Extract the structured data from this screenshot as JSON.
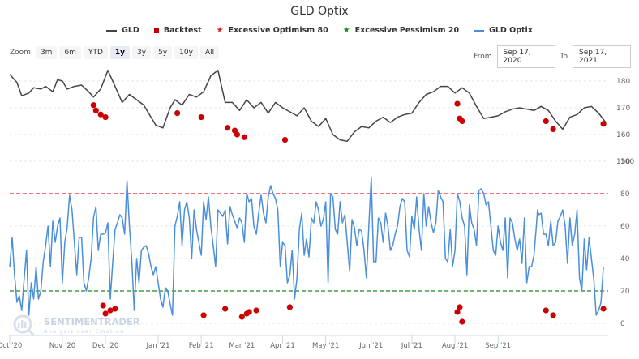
{
  "header": {
    "title": "GLD Optix"
  },
  "legend": [
    {
      "label": "GLD",
      "icon": "line",
      "color": "#444444"
    },
    {
      "label": "Backtest",
      "icon": "square",
      "color": "#c00000"
    },
    {
      "label": "Excessive Optimism 80",
      "icon": "star",
      "color": "#e02020"
    },
    {
      "label": "Excessive Pessimism 20",
      "icon": "star",
      "color": "#1a8a1a"
    },
    {
      "label": "GLD Optix",
      "icon": "line",
      "color": "#4a8fdc"
    }
  ],
  "zoom": {
    "label": "Zoom",
    "buttons": [
      "3m",
      "6m",
      "YTD",
      "1y",
      "3y",
      "5y",
      "10y",
      "All"
    ],
    "active": "1y"
  },
  "range": {
    "from_label": "From",
    "from_value": "Sep 17, 2020",
    "to_label": "To",
    "to_value": "Sep 17, 2021"
  },
  "watermark": {
    "brand": "SENTIMENTRADER",
    "tagline": "Analysis over Emotion"
  },
  "chart_data": [
    {
      "type": "line",
      "title": "GLD",
      "ylabel": "",
      "ylim": [
        150,
        185
      ],
      "yticks": [
        "150",
        "160",
        "170",
        "180"
      ],
      "x_domain": [
        0,
        250
      ],
      "series": [
        {
          "name": "GLD",
          "color": "#444444",
          "x": [
            0,
            3,
            5,
            8,
            10,
            13,
            15,
            18,
            20,
            22,
            24,
            27,
            30,
            33,
            35,
            38,
            41,
            44,
            47,
            50,
            53,
            56,
            58,
            61,
            64,
            67,
            69,
            72,
            75,
            78,
            81,
            84,
            87,
            90,
            93,
            96,
            99,
            102,
            105,
            108,
            111,
            114,
            117,
            120,
            123,
            126,
            129,
            132,
            135,
            138,
            141,
            144,
            147,
            150,
            153,
            156,
            159,
            162,
            165,
            168,
            171,
            174,
            177,
            180,
            183,
            186,
            189,
            192,
            195,
            198,
            201,
            204,
            207,
            210,
            213,
            216,
            219,
            222,
            225,
            228,
            231,
            234,
            237,
            240,
            243,
            246,
            249
          ],
          "values": [
            182.5,
            179.5,
            174.5,
            175.5,
            177.5,
            177,
            178,
            176,
            180.5,
            180,
            177,
            178,
            178.5,
            176,
            174,
            177,
            184,
            178,
            172,
            175,
            173,
            171,
            168,
            163.5,
            162.5,
            170,
            173,
            171,
            175,
            174,
            176,
            182,
            184,
            172,
            172,
            169,
            173,
            170,
            172,
            168,
            172,
            170,
            168.5,
            167,
            170,
            165,
            163,
            166,
            160,
            158,
            157.5,
            161,
            163,
            162.5,
            165,
            166.5,
            164.5,
            166.5,
            167.5,
            168,
            172,
            175,
            176,
            178,
            178,
            175.5,
            177.5,
            175.5,
            170.5,
            166,
            166.5,
            167,
            168.5,
            169.5,
            170,
            169.5,
            169,
            170.5,
            169,
            165,
            162,
            166.5,
            167.5,
            170,
            170.5,
            168,
            164.5
          ],
          "backtest_points": [
            {
              "x": 35,
              "value": 171
            },
            {
              "x": 36,
              "value": 169
            },
            {
              "x": 38,
              "value": 167.5
            },
            {
              "x": 40,
              "value": 166.5
            },
            {
              "x": 70,
              "value": 168
            },
            {
              "x": 80,
              "value": 166.5
            },
            {
              "x": 91,
              "value": 162.5
            },
            {
              "x": 94,
              "value": 161.5
            },
            {
              "x": 95,
              "value": 160
            },
            {
              "x": 98,
              "value": 159
            },
            {
              "x": 115,
              "value": 158
            },
            {
              "x": 187,
              "value": 171.5
            },
            {
              "x": 188,
              "value": 166
            },
            {
              "x": 189,
              "value": 165
            },
            {
              "x": 224,
              "value": 165
            },
            {
              "x": 227,
              "value": 162
            },
            {
              "x": 248,
              "value": 164
            }
          ]
        }
      ]
    },
    {
      "type": "line",
      "title": "GLD Optix",
      "ylabel": "",
      "ylim": [
        -5,
        100
      ],
      "yticks": [
        "0",
        "20",
        "40",
        "60",
        "80",
        "100"
      ],
      "x_domain": [
        0,
        250
      ],
      "xticks": [
        "Oct '20",
        "Nov '20",
        "Dec '20",
        "Jan '21",
        "Feb '21",
        "Mar '21",
        "Apr '21",
        "May '21",
        "Jun '21",
        "Jul '21",
        "Aug '21",
        "Sep '21"
      ],
      "xtick_positions": [
        0,
        22,
        40,
        62,
        80,
        97,
        114,
        132,
        151,
        168,
        186,
        204
      ],
      "reference_lines": [
        {
          "name": "Excessive Optimism 80",
          "value": 80,
          "color": "#e02020"
        },
        {
          "name": "Excessive Pessimism 20",
          "value": 20,
          "color": "#1a8a1a"
        }
      ],
      "series": [
        {
          "name": "GLD Optix",
          "color": "#4a8fdc",
          "x": [
            0,
            1,
            2,
            3,
            4,
            5,
            6,
            7,
            8,
            9,
            10,
            11,
            12,
            13,
            14,
            15,
            16,
            17,
            18,
            19,
            20,
            21,
            22,
            23,
            24,
            25,
            26,
            27,
            28,
            29,
            30,
            31,
            32,
            33,
            34,
            35,
            36,
            37,
            38,
            39,
            40,
            41,
            42,
            43,
            44,
            45,
            46,
            47,
            48,
            49,
            50,
            51,
            52,
            53,
            54,
            55,
            56,
            57,
            58,
            59,
            60,
            61,
            62,
            63,
            64,
            65,
            66,
            67,
            68,
            69,
            70,
            71,
            72,
            73,
            74,
            75,
            76,
            77,
            78,
            79,
            80,
            81,
            82,
            83,
            84,
            85,
            86,
            87,
            88,
            89,
            90,
            91,
            92,
            93,
            94,
            95,
            96,
            97,
            98,
            99,
            100,
            101,
            102,
            103,
            104,
            105,
            106,
            107,
            108,
            109,
            110,
            111,
            112,
            113,
            114,
            115,
            116,
            117,
            118,
            119,
            120,
            121,
            122,
            123,
            124,
            125,
            126,
            127,
            128,
            129,
            130,
            131,
            132,
            133,
            134,
            135,
            136,
            137,
            138,
            139,
            140,
            141,
            142,
            143,
            144,
            145,
            146,
            147,
            148,
            149,
            150,
            151,
            152,
            153,
            154,
            155,
            156,
            157,
            158,
            159,
            160,
            161,
            162,
            163,
            164,
            165,
            166,
            167,
            168,
            169,
            170,
            171,
            172,
            173,
            174,
            175,
            176,
            177,
            178,
            179,
            180,
            181,
            182,
            183,
            184,
            185,
            186,
            187,
            188,
            189,
            190,
            191,
            192,
            193,
            194,
            195,
            196,
            197,
            198,
            199,
            200,
            201,
            202,
            203,
            204,
            205,
            206,
            207,
            208,
            209,
            210,
            211,
            212,
            213,
            214,
            215,
            216,
            217,
            218,
            219,
            220,
            220.5,
            221,
            222,
            223,
            224,
            225,
            226,
            227,
            228,
            229,
            230,
            231,
            232,
            233,
            234,
            235,
            236,
            237,
            238,
            239,
            240,
            241,
            242,
            243,
            244,
            245,
            246,
            247,
            248
          ],
          "values": [
            35,
            53,
            30,
            13,
            17,
            8,
            27,
            45,
            5,
            25,
            15,
            35,
            15,
            20,
            38,
            48,
            60,
            35,
            63,
            50,
            60,
            65,
            25,
            50,
            59,
            79,
            70,
            50,
            30,
            53,
            53,
            25,
            20,
            28,
            40,
            65,
            72,
            45,
            55,
            55,
            56,
            62,
            15,
            37,
            58,
            62,
            67,
            65,
            55,
            88,
            60,
            38,
            8,
            40,
            25,
            45,
            47,
            48,
            43,
            35,
            30,
            35,
            25,
            15,
            10,
            22,
            20,
            12,
            5,
            60,
            66,
            75,
            48,
            70,
            75,
            65,
            40,
            70,
            58,
            50,
            42,
            75,
            64,
            78,
            60,
            48,
            35,
            70,
            68,
            66,
            70,
            49,
            72,
            67,
            63,
            59,
            65,
            62,
            50,
            80,
            75,
            77,
            60,
            55,
            68,
            79,
            68,
            62,
            78,
            85,
            80,
            77,
            70,
            35,
            50,
            48,
            25,
            30,
            45,
            15,
            28,
            58,
            68,
            42,
            52,
            41,
            65,
            62,
            75,
            70,
            60,
            64,
            75,
            25,
            80,
            78,
            58,
            55,
            75,
            62,
            67,
            50,
            32,
            64,
            59,
            48,
            58,
            57,
            45,
            28,
            60,
            90,
            38,
            38,
            65,
            62,
            50,
            68,
            60,
            45,
            48,
            55,
            60,
            72,
            77,
            75,
            45,
            41,
            66,
            58,
            78,
            58,
            45,
            80,
            60,
            72,
            62,
            56,
            62,
            82,
            78,
            75,
            40,
            38,
            58,
            35,
            45,
            80,
            75,
            65,
            60,
            30,
            73,
            62,
            58,
            48,
            82,
            83,
            80,
            73,
            75,
            60,
            45,
            42,
            60,
            50,
            45,
            65,
            28,
            65,
            62,
            52,
            45,
            52,
            37,
            65,
            25,
            35,
            35,
            42,
            60,
            70,
            67,
            68,
            55,
            55,
            48,
            63,
            48,
            50,
            63,
            66,
            70,
            60,
            37,
            65,
            48,
            55,
            70,
            28,
            20,
            52,
            33,
            53,
            40,
            27,
            5,
            8,
            13,
            35
          ],
          "backtest_points": [
            {
              "x": 39,
              "value": 11
            },
            {
              "x": 40,
              "value": 6
            },
            {
              "x": 42,
              "value": 8
            },
            {
              "x": 44,
              "value": 9
            },
            {
              "x": 81,
              "value": 5
            },
            {
              "x": 90,
              "value": 9
            },
            {
              "x": 97,
              "value": 4
            },
            {
              "x": 99,
              "value": 6
            },
            {
              "x": 100,
              "value": 7
            },
            {
              "x": 103,
              "value": 8
            },
            {
              "x": 117,
              "value": 10
            },
            {
              "x": 187,
              "value": 7
            },
            {
              "x": 188,
              "value": 10
            },
            {
              "x": 189,
              "value": 1
            },
            {
              "x": 224,
              "value": 8
            },
            {
              "x": 227,
              "value": 5
            },
            {
              "x": 248,
              "value": 9
            }
          ]
        }
      ]
    }
  ]
}
